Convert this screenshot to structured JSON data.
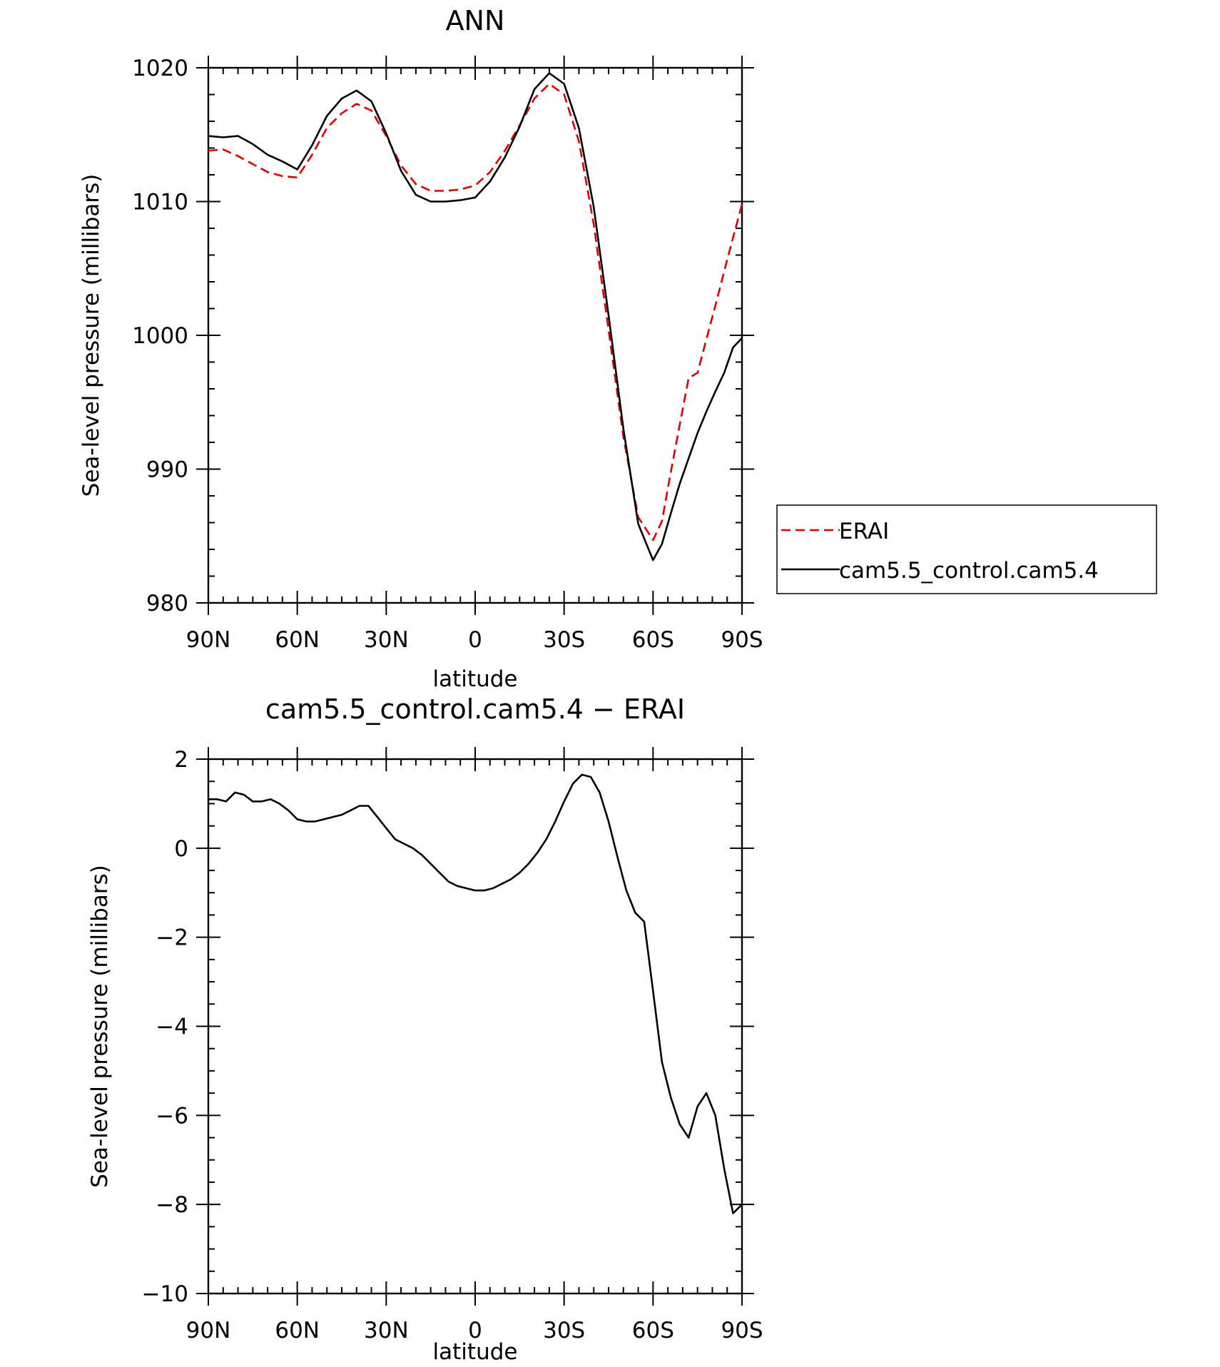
{
  "chart_data": [
    {
      "type": "line",
      "title": "ANN",
      "xlabel": "latitude",
      "ylabel": "Sea-level pressure (millibars)",
      "x_axis": "latitude, north to south (negative = south)",
      "xlim": [
        90,
        -90
      ],
      "ylim": [
        980,
        1020
      ],
      "x_ticks": [
        90,
        60,
        30,
        0,
        -30,
        -60,
        -90
      ],
      "x_tick_labels": [
        "90N",
        "60N",
        "30N",
        "0",
        "30S",
        "60S",
        "90S"
      ],
      "y_ticks": [
        980,
        990,
        1000,
        1010,
        1020
      ],
      "y_tick_labels": [
        "980",
        "990",
        "1000",
        "1010",
        "1020"
      ],
      "legend_position": "right",
      "series": [
        {
          "name": "ERAI",
          "color": "#dd0000",
          "dash": "dashed",
          "x": [
            90,
            85,
            80,
            75,
            70,
            65,
            60,
            55,
            50,
            45,
            40,
            35,
            30,
            25,
            20,
            15,
            10,
            5,
            0,
            -5,
            -10,
            -15,
            -20,
            -25,
            -30,
            -35,
            -40,
            -45,
            -50,
            -55,
            -60,
            -63,
            -66,
            -69,
            -72,
            -75,
            -78,
            -81,
            -84,
            -87,
            -90
          ],
          "y": [
            1013.8,
            1013.9,
            1013.4,
            1012.8,
            1012.2,
            1011.9,
            1011.8,
            1013.5,
            1015.5,
            1016.6,
            1017.3,
            1016.8,
            1014.9,
            1012.7,
            1011.3,
            1010.8,
            1010.8,
            1010.9,
            1011.2,
            1012.2,
            1013.8,
            1015.7,
            1017.7,
            1018.8,
            1018.0,
            1014.5,
            1008.3,
            1000.4,
            992.4,
            986.4,
            984.7,
            986.1,
            989.8,
            993.3,
            996.8,
            997.2,
            999.7,
            1002.2,
            1004.8,
            1007.3,
            1009.8
          ]
        },
        {
          "name": "cam5.5_control.cam5.4",
          "color": "#000000",
          "dash": "solid",
          "x": [
            90,
            85,
            80,
            75,
            70,
            65,
            60,
            55,
            50,
            45,
            40,
            35,
            30,
            25,
            20,
            15,
            10,
            5,
            0,
            -5,
            -10,
            -15,
            -20,
            -25,
            -30,
            -35,
            -40,
            -45,
            -50,
            -55,
            -60,
            -63,
            -66,
            -69,
            -72,
            -75,
            -78,
            -81,
            -84,
            -87,
            -90
          ],
          "y": [
            1014.9,
            1014.8,
            1014.9,
            1014.3,
            1013.5,
            1013.0,
            1012.4,
            1014.2,
            1016.4,
            1017.7,
            1018.3,
            1017.5,
            1015.1,
            1012.3,
            1010.5,
            1010.0,
            1010.0,
            1010.1,
            1010.3,
            1011.5,
            1013.3,
            1015.6,
            1018.4,
            1019.6,
            1018.8,
            1015.5,
            1009.6,
            1001.5,
            993.0,
            985.9,
            983.2,
            984.4,
            986.7,
            988.9,
            990.8,
            992.7,
            994.3,
            995.8,
            997.2,
            999.1,
            999.8
          ]
        }
      ]
    },
    {
      "type": "line",
      "title": "cam5.5_control.cam5.4 − ERAI",
      "xlabel": "latitude",
      "ylabel": "Sea-level pressure (millibars)",
      "x_axis": "latitude, north to south (negative = south)",
      "xlim": [
        90,
        -90
      ],
      "ylim": [
        -10,
        2
      ],
      "x_ticks": [
        90,
        60,
        30,
        0,
        -30,
        -60,
        -90
      ],
      "x_tick_labels": [
        "90N",
        "60N",
        "30N",
        "0",
        "30S",
        "60S",
        "90S"
      ],
      "y_ticks": [
        -10,
        -8,
        -6,
        -4,
        -2,
        0,
        2
      ],
      "y_tick_labels": [
        "−10",
        "−8",
        "−6",
        "−4",
        "−2",
        "0",
        "2"
      ],
      "series": [
        {
          "color": "#000000",
          "dash": "solid",
          "x": [
            90,
            87,
            84,
            81,
            78,
            75,
            72,
            69,
            66,
            63,
            60,
            57,
            54,
            51,
            48,
            45,
            42,
            39,
            36,
            33,
            30,
            27,
            24,
            21,
            18,
            15,
            12,
            9,
            6,
            3,
            0,
            -3,
            -6,
            -9,
            -12,
            -15,
            -18,
            -21,
            -24,
            -27,
            -30,
            -33,
            -36,
            -39,
            -42,
            -45,
            -48,
            -51,
            -54,
            -57,
            -60,
            -63,
            -66,
            -69,
            -72,
            -75,
            -78,
            -81,
            -84,
            -87,
            -90
          ],
          "y": [
            1.1,
            1.1,
            1.05,
            1.25,
            1.2,
            1.05,
            1.05,
            1.1,
            1.0,
            0.85,
            0.65,
            0.6,
            0.6,
            0.65,
            0.7,
            0.75,
            0.85,
            0.95,
            0.95,
            0.7,
            0.45,
            0.2,
            0.1,
            0.0,
            -0.15,
            -0.35,
            -0.55,
            -0.75,
            -0.85,
            -0.9,
            -0.95,
            -0.95,
            -0.9,
            -0.8,
            -0.7,
            -0.55,
            -0.35,
            -0.1,
            0.2,
            0.6,
            1.05,
            1.45,
            1.65,
            1.6,
            1.25,
            0.6,
            -0.2,
            -0.95,
            -1.45,
            -1.65,
            -3.2,
            -4.8,
            -5.6,
            -6.2,
            -6.5,
            -5.8,
            -5.5,
            -6.0,
            -7.2,
            -8.2,
            -8.0
          ]
        }
      ]
    }
  ]
}
